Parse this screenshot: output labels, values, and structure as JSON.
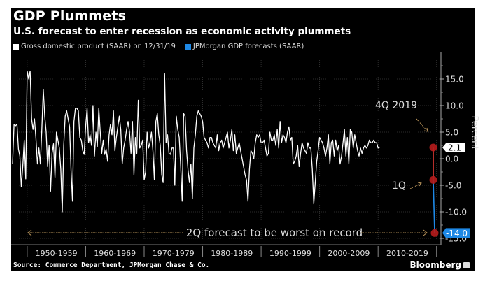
{
  "header": {
    "title": "GDP Plummets",
    "subtitle": "U.S. forecast to enter recession as economic activity plummets"
  },
  "legend": [
    {
      "label": "Gross domestic product (SAAR) on 12/31/19",
      "color": "#ffffff"
    },
    {
      "label": "JPMorgan GDP forecasts (SAAR)",
      "color": "#1e88e5"
    }
  ],
  "footer": {
    "source": "Source: Commerce Department, JPMorgan Chase & Co.",
    "brand": "Bloomberg"
  },
  "annotations": {
    "q4": "4Q 2019",
    "q1": "1Q",
    "q2": "2Q forecast to be worst on record"
  },
  "chart_data": {
    "type": "line",
    "title": "GDP Plummets",
    "subtitle": "U.S. forecast to enter recession as economic activity plummets",
    "xlabel": "",
    "ylabel": "Percent",
    "ylim": [
      -15,
      18
    ],
    "yticks": [
      15.0,
      10.0,
      5.0,
      0.0,
      -5.0,
      -10.0,
      -15.0
    ],
    "ytick_labels": [
      "15.0",
      "10.0",
      "5.0",
      "0.0",
      "-5.0",
      "-10.0",
      "-15.0"
    ],
    "xlim": [
      1947.5,
      2020.75
    ],
    "xtick_labels": [
      "1950-1959",
      "1960-1969",
      "1970-1979",
      "1980-1989",
      "1990-1999",
      "2000-2009",
      "2010-2019"
    ],
    "grid": true,
    "legend_position": "top-left",
    "last_value_labels": [
      {
        "series": "Gross domestic product (SAAR) on 12/31/19",
        "value": "2.1",
        "color": "#ffffff"
      },
      {
        "series": "JPMorgan GDP forecasts (SAAR)",
        "value": "-14.0",
        "color": "#1e88e5"
      }
    ],
    "series": [
      {
        "name": "Gross domestic product (SAAR) on 12/31/19",
        "color": "#ffffff",
        "start_year": 1947.5,
        "step": 0.25,
        "values": [
          -1.0,
          6.4,
          6.2,
          6.5,
          1.8,
          0.5,
          -5.3,
          -1.4,
          3.5,
          -3.8,
          16.5,
          15.0,
          16.5,
          7.5,
          5.5,
          7.5,
          3.8,
          -1.0,
          2.0,
          -1.0,
          5.5,
          13.0,
          8.0,
          5.0,
          -1.5,
          2.5,
          -6.1,
          1.0,
          2.8,
          -3.5,
          5.0,
          3.5,
          2.0,
          -2.0,
          -10.0,
          2.5,
          8.0,
          9.0,
          7.5,
          6.0,
          -2.0,
          -8.0,
          7.0,
          9.5,
          9.5,
          9.0,
          4.0,
          3.5,
          1.5,
          0.8,
          6.0,
          9.5,
          3.0,
          4.5,
          2.5,
          10.0,
          0.5,
          5.0,
          2.3,
          9.5,
          5.0,
          1.0,
          3.5,
          0.8,
          1.8,
          -0.5,
          4.5,
          6.5,
          4.5,
          9.0,
          1.5,
          4.0,
          6.0,
          8.0,
          5.5,
          -1.0,
          2.0,
          3.5,
          5.5,
          7.0,
          5.0,
          1.0,
          7.0,
          -3.0,
          4.0,
          1.0,
          11.0,
          2.0,
          2.5,
          3.5,
          -4.0,
          -2.5,
          5.0,
          2.0,
          3.0,
          5.0,
          1.5,
          -4.0,
          7.0,
          8.5,
          4.5,
          2.5,
          -3.0,
          -4.5,
          16.0,
          3.0,
          4.5,
          1.0,
          0.8,
          2.0,
          2.0,
          -5.0,
          8.0,
          5.5,
          4.0,
          -1.5,
          -8.0,
          8.5,
          8.0,
          1.5,
          -2.0,
          -4.5,
          -1.0,
          -7.5,
          2.0,
          4.5,
          8.0,
          9.0,
          8.5,
          8.0,
          7.0,
          4.0,
          3.5,
          3.0,
          2.0,
          4.0,
          4.0,
          3.0,
          2.5,
          2.0,
          4.5,
          1.5,
          3.0,
          3.5,
          2.0,
          3.0,
          4.0,
          5.0,
          2.0,
          3.5,
          5.5,
          1.5,
          4.5,
          1.0,
          2.0,
          3.0,
          1.5,
          0.0,
          -1.5,
          -3.0,
          -4.0,
          -8.0,
          -2.0,
          1.5,
          1.0,
          0.0,
          3.0,
          4.5,
          4.0,
          4.5,
          3.0,
          3.0,
          3.5,
          2.0,
          0.5,
          1.0,
          5.0,
          3.5,
          3.5,
          4.5,
          2.5,
          5.5,
          2.0,
          7.0,
          3.0,
          4.5,
          4.0,
          3.0,
          5.0,
          6.0,
          3.5,
          4.0,
          -1.0,
          -0.5,
          0.5,
          2.5,
          -1.5,
          1.0,
          3.0,
          2.0,
          1.5,
          1.0,
          3.0,
          2.0,
          2.0,
          -2.0,
          -8.5,
          -4.5,
          -0.5,
          1.5,
          4.0,
          3.5,
          3.0,
          2.0,
          0.5,
          2.0,
          4.5,
          -1.0,
          3.0,
          3.5,
          0.5,
          3.5,
          1.5,
          2.5,
          -1.0,
          0.5,
          3.0,
          5.5,
          0.5,
          4.0,
          -1.0,
          5.5,
          5.0,
          2.0,
          4.5,
          3.0,
          1.5,
          0.5,
          2.0,
          1.0,
          2.0,
          2.5,
          2.0,
          2.5,
          3.5,
          3.0,
          3.0,
          3.5,
          3.0,
          3.0,
          2.0,
          2.1
        ]
      },
      {
        "name": "JPMorgan GDP forecasts (SAAR)",
        "color": "#1e88e5",
        "points": [
          {
            "period": "4Q 2019",
            "x": 2019.75,
            "value": 2.1
          },
          {
            "period": "1Q 2020",
            "x": 2020.0,
            "value": -4.0
          },
          {
            "period": "2Q 2020",
            "x": 2020.25,
            "value": -14.0
          }
        ]
      }
    ]
  }
}
